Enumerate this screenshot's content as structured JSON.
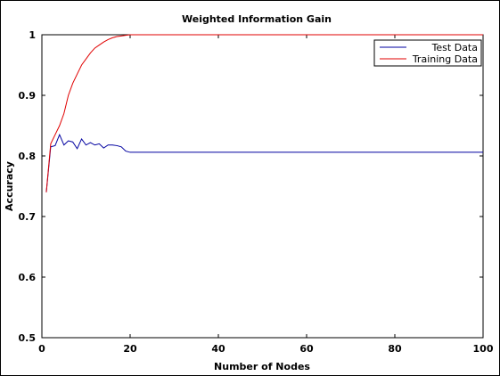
{
  "chart_data": {
    "type": "line",
    "title": "Weighted Information Gain",
    "xlabel": "Number of Nodes",
    "ylabel": "Accuracy",
    "xlim": [
      0,
      100
    ],
    "ylim": [
      0.5,
      1.0
    ],
    "xticks": [
      0,
      20,
      40,
      60,
      80,
      100
    ],
    "yticks": [
      0.5,
      0.6,
      0.7,
      0.8,
      0.9,
      1.0
    ],
    "xtick_labels": [
      "0",
      "20",
      "40",
      "60",
      "80",
      "100"
    ],
    "ytick_labels": [
      "0.5",
      "0.6",
      "0.7",
      "0.8",
      "0.9",
      "1"
    ],
    "grid": false,
    "legend_position": "top-right",
    "series": [
      {
        "name": "Test Data",
        "color": "#0000a0",
        "x": [
          1,
          2,
          3,
          4,
          5,
          6,
          7,
          8,
          9,
          10,
          11,
          12,
          13,
          14,
          15,
          16,
          17,
          18,
          19,
          20,
          100
        ],
        "y": [
          0.74,
          0.815,
          0.817,
          0.835,
          0.818,
          0.825,
          0.823,
          0.812,
          0.828,
          0.818,
          0.822,
          0.818,
          0.82,
          0.813,
          0.818,
          0.818,
          0.817,
          0.815,
          0.808,
          0.806,
          0.806
        ]
      },
      {
        "name": "Training Data",
        "color": "#e00000",
        "x": [
          1,
          2,
          3,
          4,
          5,
          6,
          7,
          8,
          9,
          10,
          11,
          12,
          13,
          14,
          15,
          16,
          17,
          18,
          19,
          20,
          100
        ],
        "y": [
          0.74,
          0.82,
          0.835,
          0.85,
          0.87,
          0.9,
          0.92,
          0.935,
          0.95,
          0.96,
          0.97,
          0.978,
          0.983,
          0.988,
          0.992,
          0.995,
          0.997,
          0.998,
          0.999,
          1.0,
          1.0
        ]
      }
    ]
  }
}
